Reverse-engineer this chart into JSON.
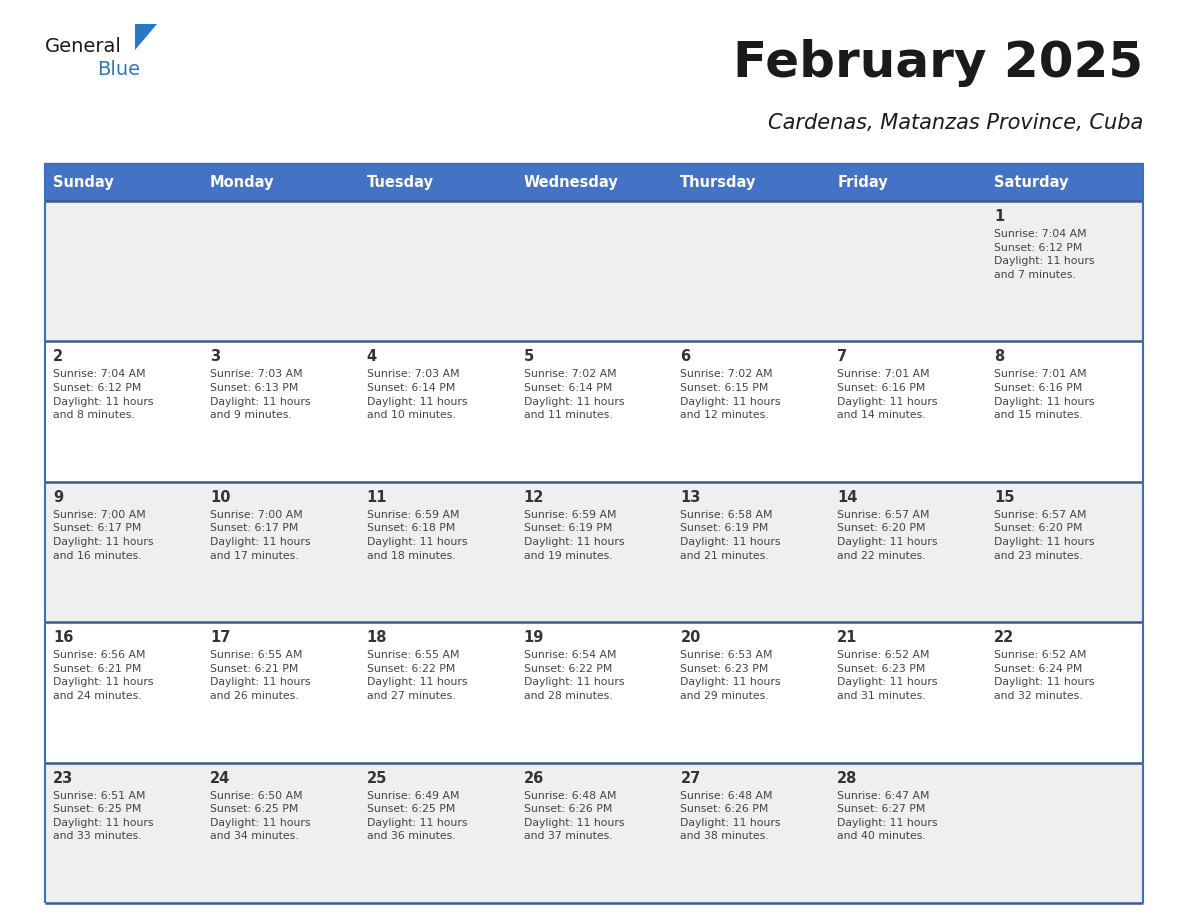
{
  "title": "February 2025",
  "subtitle": "Cardenas, Matanzas Province, Cuba",
  "header_bg": "#4472C4",
  "header_text": "#FFFFFF",
  "row_bg_light": "#EFEFEF",
  "row_bg_white": "#FFFFFF",
  "row_bgs": [
    "#EFEFEF",
    "#FFFFFF",
    "#EFEFEF",
    "#FFFFFF",
    "#EFEFEF"
  ],
  "week_border_color": "#3A5A8C",
  "outer_border_color": "#3A6EBF",
  "day_number_color": "#333333",
  "cell_text_color": "#444444",
  "days_of_week": [
    "Sunday",
    "Monday",
    "Tuesday",
    "Wednesday",
    "Thursday",
    "Friday",
    "Saturday"
  ],
  "weeks": [
    [
      {
        "day": null,
        "info": null
      },
      {
        "day": null,
        "info": null
      },
      {
        "day": null,
        "info": null
      },
      {
        "day": null,
        "info": null
      },
      {
        "day": null,
        "info": null
      },
      {
        "day": null,
        "info": null
      },
      {
        "day": 1,
        "info": "Sunrise: 7:04 AM\nSunset: 6:12 PM\nDaylight: 11 hours\nand 7 minutes."
      }
    ],
    [
      {
        "day": 2,
        "info": "Sunrise: 7:04 AM\nSunset: 6:12 PM\nDaylight: 11 hours\nand 8 minutes."
      },
      {
        "day": 3,
        "info": "Sunrise: 7:03 AM\nSunset: 6:13 PM\nDaylight: 11 hours\nand 9 minutes."
      },
      {
        "day": 4,
        "info": "Sunrise: 7:03 AM\nSunset: 6:14 PM\nDaylight: 11 hours\nand 10 minutes."
      },
      {
        "day": 5,
        "info": "Sunrise: 7:02 AM\nSunset: 6:14 PM\nDaylight: 11 hours\nand 11 minutes."
      },
      {
        "day": 6,
        "info": "Sunrise: 7:02 AM\nSunset: 6:15 PM\nDaylight: 11 hours\nand 12 minutes."
      },
      {
        "day": 7,
        "info": "Sunrise: 7:01 AM\nSunset: 6:16 PM\nDaylight: 11 hours\nand 14 minutes."
      },
      {
        "day": 8,
        "info": "Sunrise: 7:01 AM\nSunset: 6:16 PM\nDaylight: 11 hours\nand 15 minutes."
      }
    ],
    [
      {
        "day": 9,
        "info": "Sunrise: 7:00 AM\nSunset: 6:17 PM\nDaylight: 11 hours\nand 16 minutes."
      },
      {
        "day": 10,
        "info": "Sunrise: 7:00 AM\nSunset: 6:17 PM\nDaylight: 11 hours\nand 17 minutes."
      },
      {
        "day": 11,
        "info": "Sunrise: 6:59 AM\nSunset: 6:18 PM\nDaylight: 11 hours\nand 18 minutes."
      },
      {
        "day": 12,
        "info": "Sunrise: 6:59 AM\nSunset: 6:19 PM\nDaylight: 11 hours\nand 19 minutes."
      },
      {
        "day": 13,
        "info": "Sunrise: 6:58 AM\nSunset: 6:19 PM\nDaylight: 11 hours\nand 21 minutes."
      },
      {
        "day": 14,
        "info": "Sunrise: 6:57 AM\nSunset: 6:20 PM\nDaylight: 11 hours\nand 22 minutes."
      },
      {
        "day": 15,
        "info": "Sunrise: 6:57 AM\nSunset: 6:20 PM\nDaylight: 11 hours\nand 23 minutes."
      }
    ],
    [
      {
        "day": 16,
        "info": "Sunrise: 6:56 AM\nSunset: 6:21 PM\nDaylight: 11 hours\nand 24 minutes."
      },
      {
        "day": 17,
        "info": "Sunrise: 6:55 AM\nSunset: 6:21 PM\nDaylight: 11 hours\nand 26 minutes."
      },
      {
        "day": 18,
        "info": "Sunrise: 6:55 AM\nSunset: 6:22 PM\nDaylight: 11 hours\nand 27 minutes."
      },
      {
        "day": 19,
        "info": "Sunrise: 6:54 AM\nSunset: 6:22 PM\nDaylight: 11 hours\nand 28 minutes."
      },
      {
        "day": 20,
        "info": "Sunrise: 6:53 AM\nSunset: 6:23 PM\nDaylight: 11 hours\nand 29 minutes."
      },
      {
        "day": 21,
        "info": "Sunrise: 6:52 AM\nSunset: 6:23 PM\nDaylight: 11 hours\nand 31 minutes."
      },
      {
        "day": 22,
        "info": "Sunrise: 6:52 AM\nSunset: 6:24 PM\nDaylight: 11 hours\nand 32 minutes."
      }
    ],
    [
      {
        "day": 23,
        "info": "Sunrise: 6:51 AM\nSunset: 6:25 PM\nDaylight: 11 hours\nand 33 minutes."
      },
      {
        "day": 24,
        "info": "Sunrise: 6:50 AM\nSunset: 6:25 PM\nDaylight: 11 hours\nand 34 minutes."
      },
      {
        "day": 25,
        "info": "Sunrise: 6:49 AM\nSunset: 6:25 PM\nDaylight: 11 hours\nand 36 minutes."
      },
      {
        "day": 26,
        "info": "Sunrise: 6:48 AM\nSunset: 6:26 PM\nDaylight: 11 hours\nand 37 minutes."
      },
      {
        "day": 27,
        "info": "Sunrise: 6:48 AM\nSunset: 6:26 PM\nDaylight: 11 hours\nand 38 minutes."
      },
      {
        "day": 28,
        "info": "Sunrise: 6:47 AM\nSunset: 6:27 PM\nDaylight: 11 hours\nand 40 minutes."
      },
      {
        "day": null,
        "info": null
      }
    ]
  ],
  "logo_general_color": "#1a1a1a",
  "logo_blue_color": "#2878c8",
  "logo_triangle_color": "#2878c8",
  "title_color": "#1a1a1a",
  "subtitle_color": "#1a1a1a"
}
